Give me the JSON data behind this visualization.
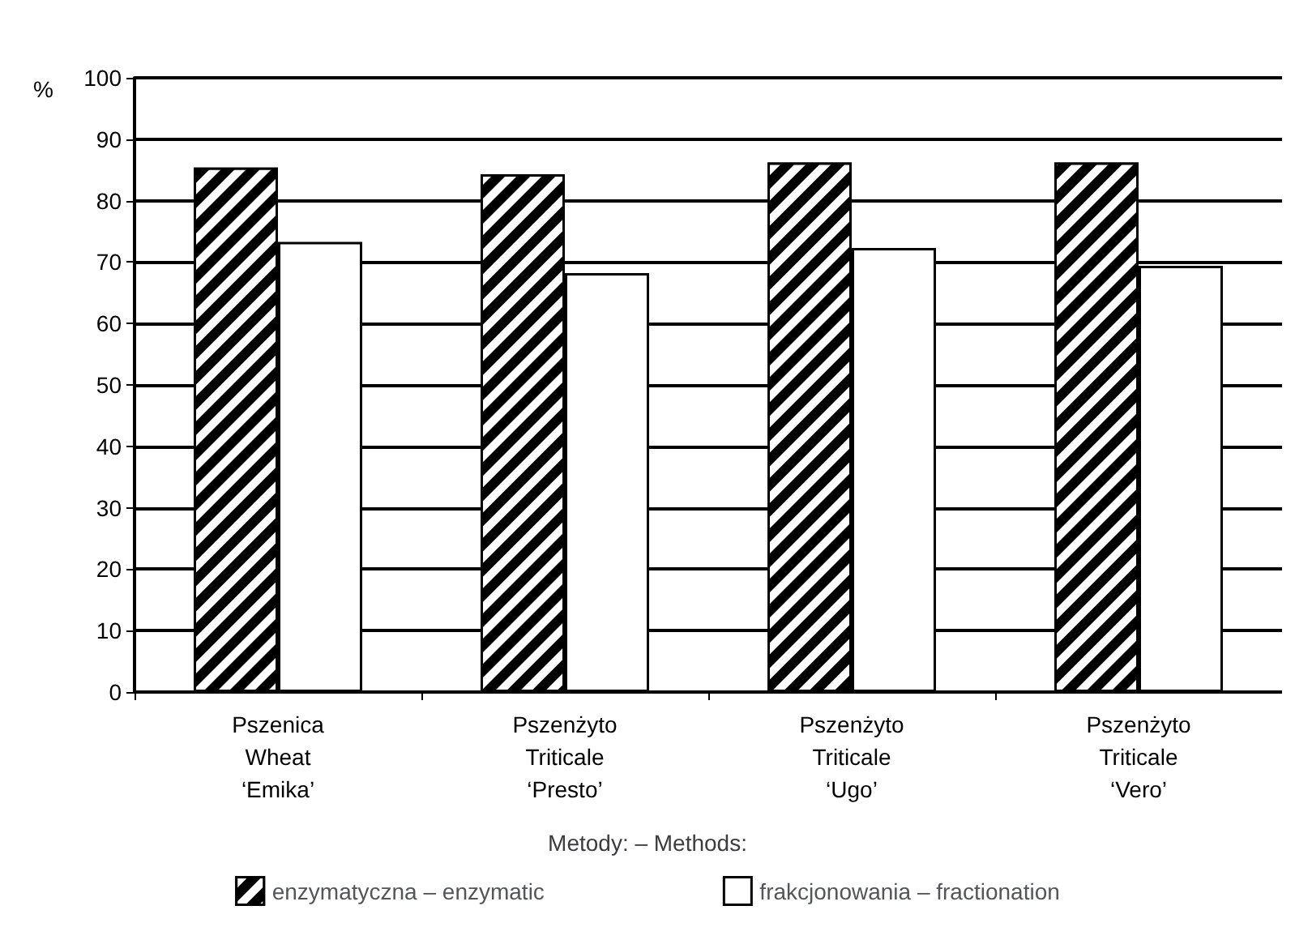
{
  "chart_data": {
    "type": "bar",
    "ylabel": "%",
    "legend_title": "Metody: – Methods:",
    "categories": [
      "Pszenica\nWheat\n‘Emika’",
      "Pszenżyto\nTriticale\n‘Presto’",
      "Pszenżyto\nTriticale\n‘Ugo’",
      "Pszenżyto\nTriticale\n‘Vero’"
    ],
    "series": [
      {
        "name": "enzymatyczna – enzymatic",
        "color": "#000000",
        "values": [
          85.4,
          84.3,
          86.2,
          86.2
        ]
      },
      {
        "name": "frakcjonowania – fractionation",
        "color": "#ffffff",
        "values": [
          73.3,
          68.2,
          72.3,
          69.4
        ]
      }
    ],
    "ylim": [
      0,
      100
    ],
    "yticks": [
      0,
      10,
      20,
      30,
      40,
      50,
      60,
      70,
      80,
      90,
      100
    ],
    "grid": "y",
    "legend": "bottom"
  }
}
